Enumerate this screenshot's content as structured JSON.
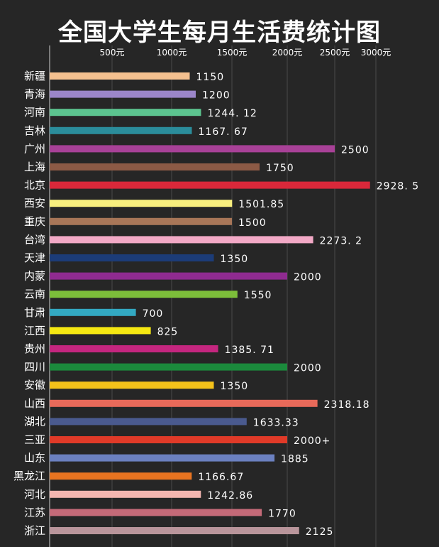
{
  "chart_data": {
    "type": "bar",
    "orientation": "horizontal",
    "title": "全国大学生每月生活费统计图",
    "xlabel": "",
    "ylabel": "",
    "grid": true,
    "xlim": [
      0,
      3000
    ],
    "ticks": [
      {
        "value": 500,
        "label": "500元"
      },
      {
        "value": 1000,
        "label": "1000元"
      },
      {
        "value": 1500,
        "label": "1500元"
      },
      {
        "value": 2000,
        "label": "2000元"
      },
      {
        "value": 2500,
        "label": "2500元"
      },
      {
        "value": 3000,
        "label": "3000元"
      }
    ],
    "categories": [
      "新疆",
      "青海",
      "河南",
      "吉林",
      "广州",
      "上海",
      "北京",
      "西安",
      "重庆",
      "台湾",
      "天津",
      "内蒙",
      "云南",
      "甘肃",
      "江西",
      "贵州",
      "四川",
      "安徽",
      "山西",
      "湖北",
      "三亚",
      "山东",
      "黑龙江",
      "河北",
      "江苏",
      "浙江"
    ],
    "values": [
      1150,
      1200,
      1244.12,
      1167.67,
      2500,
      1750,
      2928.5,
      1501.85,
      1500,
      2273.2,
      1350,
      2000,
      1550,
      700,
      825,
      1385.71,
      2000,
      1350,
      2318.18,
      1633.33,
      2000,
      1885,
      1166.67,
      1242.86,
      1770,
      2125
    ],
    "value_labels": [
      "1150",
      "1200",
      "1244. 12",
      "1167. 67",
      "2500",
      "1750",
      "2928. 5",
      "1501.85",
      "1500",
      "2273. 2",
      "1350",
      "2000",
      "1550",
      "700",
      "825",
      "1385. 71",
      "2000",
      "1350",
      "2318.18",
      "1633.33",
      "2000+",
      "1885",
      "1166.67",
      "1242.86",
      "1770",
      "2125"
    ],
    "colors": [
      "#f4c08f",
      "#9b86c9",
      "#5cc48f",
      "#2b8d9b",
      "#a84197",
      "#8c5a45",
      "#d9283a",
      "#f7ee7e",
      "#a87658",
      "#f2a9c6",
      "#1c3c78",
      "#8f2b90",
      "#7cbe3a",
      "#33a9c2",
      "#f5e812",
      "#c4267f",
      "#1b8a3c",
      "#f4c21a",
      "#e86a5a",
      "#4a5a8e",
      "#e03a28",
      "#6b80c0",
      "#e87420",
      "#f4b6b0",
      "#c46a78",
      "#b9959b"
    ]
  }
}
